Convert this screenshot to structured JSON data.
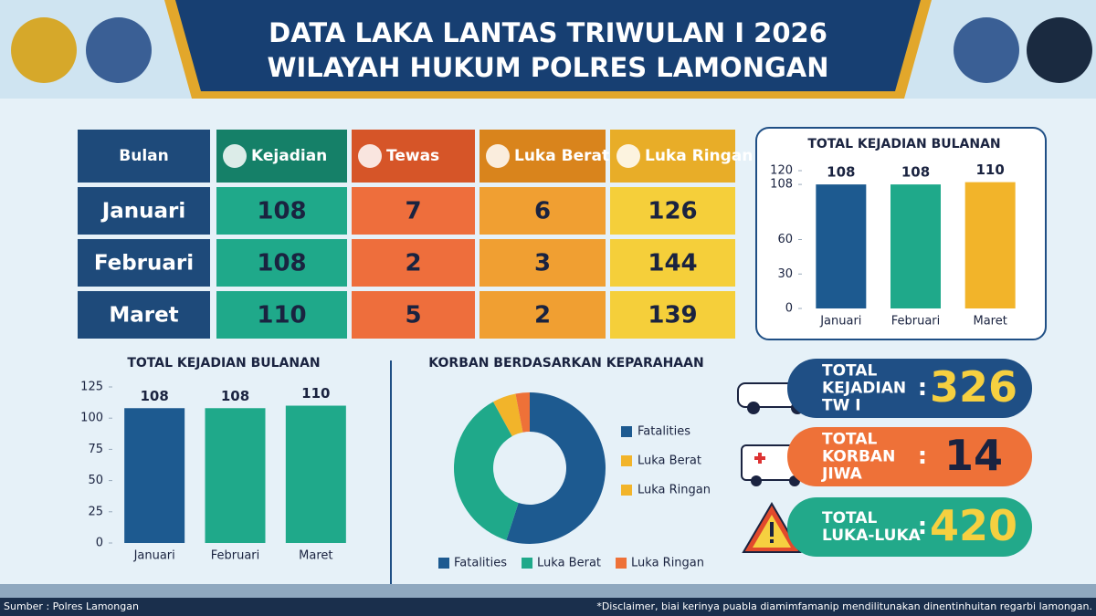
{
  "header": {
    "title_line1": "DATA LAKA LANTAS TRIWULAN I 2026",
    "title_line2": "WILAYAH HUKUM POLRES LAMONGAN"
  },
  "table": {
    "columns": [
      "Bulan",
      "Kejadian",
      "Tewas",
      "Luka Berat",
      "Luka Ringan"
    ],
    "rows": [
      [
        "Januari",
        108,
        7,
        6,
        126
      ],
      [
        "Februari",
        108,
        2,
        3,
        144
      ],
      [
        "Maret",
        110,
        5,
        2,
        139
      ]
    ]
  },
  "chart_data": [
    {
      "type": "bar",
      "title": "TOTAL KEJADIAN BULANAN",
      "categories": [
        "Januari",
        "Februari",
        "Maret"
      ],
      "values": [
        108,
        108,
        110
      ],
      "colors": [
        "#1d5a90",
        "#1fa98a",
        "#f2b42a"
      ],
      "ylim": [
        0,
        120
      ],
      "yticks": [
        0,
        30,
        60,
        108,
        120
      ]
    },
    {
      "type": "bar",
      "title": "TOTAL KEJADIAN BULANAN",
      "categories": [
        "Januari",
        "Februari",
        "Maret"
      ],
      "values": [
        108,
        108,
        110
      ],
      "colors": [
        "#1d5a90",
        "#1fa98a",
        "#1fa98a"
      ],
      "ylim": [
        0,
        125
      ],
      "yticks": [
        0,
        25,
        50,
        75,
        100,
        125
      ]
    },
    {
      "type": "pie",
      "title": "KORBAN BERDASARKAN KEPARAHAAN",
      "categories": [
        "Fatalities",
        "Luka Berat",
        null,
        "Luka Ringan"
      ],
      "values": [
        55,
        37,
        5,
        3
      ],
      "colors": [
        "#1d5a90",
        "#1fa98a",
        "#f2b42a",
        "#ee7138"
      ],
      "side_legend": [
        {
          "name": "Fatalities",
          "color": "#1d5a90"
        },
        {
          "name": "Luka Berat",
          "color": "#f2b42a"
        },
        {
          "name": "Luka Ringan",
          "color": "#f2b42a"
        }
      ]
    }
  ],
  "stats": [
    {
      "label": [
        "TOTAL",
        "KEJADIAN",
        "TW I"
      ],
      "separator": ":",
      "value": 326,
      "color": "#1f4f85",
      "value_color": "#f6d040"
    },
    {
      "label": [
        "TOTAL",
        "KORBAN",
        "JIWA"
      ],
      "separator": ":",
      "value": 14,
      "color": "#ee7138",
      "value_color": "#1a2340"
    },
    {
      "label": [
        "TOTAL",
        "LUKA-LUKA"
      ],
      "separator": ":",
      "value": 420,
      "color": "#22a98a",
      "value_color": "#f6d040"
    }
  ],
  "footer": {
    "source": "Sumber : Polres Lamongan",
    "disclaimer": "*Disclaimer, biai kerinya puabla diamimfamanip mendilitunakan dinentinhuitan regarbi lamongan."
  }
}
